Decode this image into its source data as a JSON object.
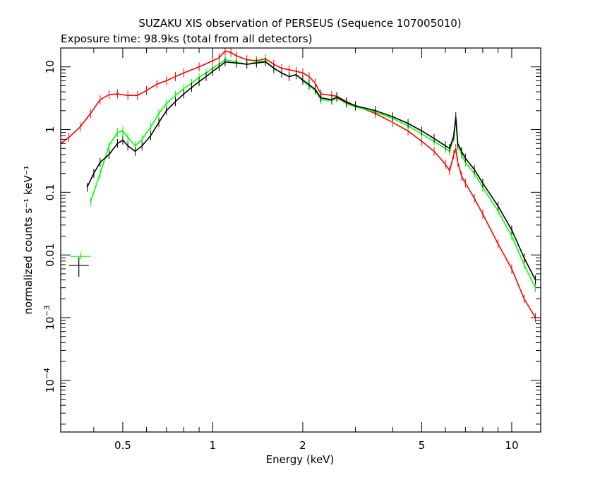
{
  "chart_data": {
    "type": "line",
    "title": "SUZAKU XIS observation of PERSEUS (Sequence 107005010)",
    "subtitle": "Exposure time: 98.9ks (total from all detectors)",
    "xlabel": "Energy (keV)",
    "ylabel": "normalized counts s⁻¹ keV⁻¹",
    "xscale": "log",
    "yscale": "log",
    "xlim": [
      0.31,
      12.5
    ],
    "ylim": [
      1.5e-05,
      20
    ],
    "grid": false,
    "x_ticks": [
      {
        "value": 0.5,
        "label": "0.5"
      },
      {
        "value": 1,
        "label": "1"
      },
      {
        "value": 2,
        "label": "2"
      },
      {
        "value": 5,
        "label": "5"
      },
      {
        "value": 10,
        "label": "10"
      }
    ],
    "y_ticks": [
      {
        "value": 10,
        "base": "10",
        "exp": ""
      },
      {
        "value": 1,
        "base": "1",
        "exp": ""
      },
      {
        "value": 0.1,
        "base": "0.1",
        "exp": ""
      },
      {
        "value": 0.01,
        "base": "0.01",
        "exp": ""
      },
      {
        "value": 0.001,
        "base": "10",
        "exp": "−3"
      },
      {
        "value": 0.0001,
        "base": "10",
        "exp": "−4"
      }
    ],
    "series": [
      {
        "color": "#ff0000",
        "x": [
          0.31,
          0.33,
          0.36,
          0.39,
          0.42,
          0.45,
          0.48,
          0.52,
          0.56,
          0.6,
          0.65,
          0.7,
          0.75,
          0.8,
          0.9,
          1.0,
          1.05,
          1.1,
          1.15,
          1.2,
          1.3,
          1.4,
          1.5,
          1.6,
          1.7,
          1.8,
          1.9,
          2.0,
          2.1,
          2.2,
          2.3,
          2.5,
          2.6,
          2.8,
          3.0,
          3.5,
          4.0,
          4.5,
          5.0,
          5.5,
          6.0,
          6.2,
          6.4,
          6.5,
          6.6,
          6.8,
          7.0,
          7.5,
          8.0,
          9.0,
          10.0,
          11.0,
          12.0
        ],
        "y": [
          0.6,
          0.75,
          1.1,
          1.8,
          3.0,
          3.6,
          3.7,
          3.5,
          3.5,
          4.2,
          5.3,
          6.0,
          7.0,
          8.0,
          10.0,
          12.5,
          14.0,
          18.0,
          17.0,
          15.0,
          13.0,
          12.5,
          13.5,
          11.0,
          9.5,
          9.0,
          8.5,
          8.0,
          7.0,
          5.5,
          3.7,
          3.5,
          3.4,
          2.8,
          2.4,
          1.8,
          1.3,
          0.95,
          0.65,
          0.45,
          0.28,
          0.22,
          0.4,
          0.5,
          0.3,
          0.18,
          0.14,
          0.08,
          0.045,
          0.015,
          0.006,
          0.002,
          0.001
        ]
      },
      {
        "color": "#00ff00",
        "x": [
          0.39,
          0.42,
          0.45,
          0.48,
          0.5,
          0.52,
          0.55,
          0.58,
          0.62,
          0.66,
          0.7,
          0.75,
          0.8,
          0.85,
          0.9,
          0.95,
          1.0,
          1.05,
          1.1,
          1.2,
          1.3,
          1.4,
          1.5,
          1.6,
          1.7,
          1.8,
          1.9,
          2.0,
          2.1,
          2.2,
          2.3,
          2.5,
          2.6,
          2.8,
          3.0,
          3.5,
          4.0,
          4.5,
          5.0,
          5.5,
          6.0,
          6.2,
          6.4,
          6.5,
          6.6,
          6.8,
          7.0,
          7.5,
          8.0,
          9.0,
          10.0,
          11.0,
          12.0
        ],
        "y": [
          0.07,
          0.2,
          0.55,
          0.9,
          0.95,
          0.75,
          0.55,
          0.7,
          1.1,
          1.8,
          2.6,
          3.5,
          4.5,
          5.5,
          6.8,
          8.0,
          9.5,
          11.0,
          13.0,
          12.0,
          11.0,
          12.0,
          12.5,
          9.5,
          8.0,
          7.0,
          7.5,
          6.0,
          5.0,
          4.2,
          3.0,
          2.9,
          3.2,
          2.6,
          2.3,
          1.9,
          1.5,
          1.15,
          0.85,
          0.65,
          0.5,
          0.45,
          0.75,
          1.5,
          0.55,
          0.4,
          0.3,
          0.2,
          0.12,
          0.05,
          0.02,
          0.007,
          0.003
        ]
      },
      {
        "color": "#000000",
        "x": [
          0.38,
          0.4,
          0.42,
          0.45,
          0.48,
          0.5,
          0.52,
          0.55,
          0.58,
          0.62,
          0.66,
          0.7,
          0.75,
          0.8,
          0.85,
          0.9,
          0.95,
          1.0,
          1.05,
          1.1,
          1.2,
          1.3,
          1.4,
          1.5,
          1.6,
          1.7,
          1.8,
          1.9,
          2.0,
          2.1,
          2.2,
          2.3,
          2.5,
          2.6,
          2.8,
          3.0,
          3.5,
          4.0,
          4.5,
          5.0,
          5.5,
          6.0,
          6.2,
          6.4,
          6.5,
          6.6,
          6.8,
          7.0,
          7.5,
          8.0,
          9.0,
          10.0,
          11.0,
          12.0
        ],
        "y": [
          0.12,
          0.2,
          0.3,
          0.4,
          0.6,
          0.68,
          0.55,
          0.45,
          0.55,
          0.8,
          1.3,
          2.0,
          2.8,
          3.7,
          4.7,
          5.8,
          7.0,
          8.5,
          10.0,
          12.0,
          11.5,
          11.0,
          11.5,
          12.0,
          9.5,
          8.0,
          7.0,
          7.5,
          6.2,
          5.2,
          4.4,
          3.2,
          3.0,
          3.3,
          2.7,
          2.4,
          2.0,
          1.6,
          1.25,
          0.95,
          0.72,
          0.55,
          0.5,
          0.8,
          1.6,
          0.6,
          0.45,
          0.35,
          0.23,
          0.14,
          0.06,
          0.025,
          0.009,
          0.004
        ]
      }
    ],
    "annotations": [
      {
        "color": "#00ff00",
        "x_range": [
          0.335,
          0.39
        ],
        "y": 0.0095,
        "y_range": [
          0.0085,
          0.011
        ]
      },
      {
        "color": "#000000",
        "x_range": [
          0.33,
          0.385
        ],
        "y": 0.0068,
        "y_range": [
          0.0045,
          0.0092
        ]
      }
    ]
  }
}
